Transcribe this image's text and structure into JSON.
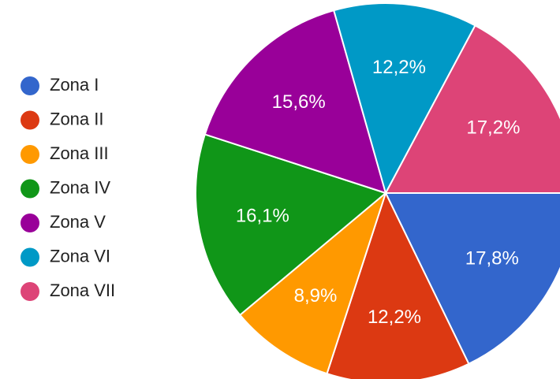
{
  "chart_data": {
    "type": "pie",
    "categories": [
      "Zona I",
      "Zona II",
      "Zona III",
      "Zona IV",
      "Zona V",
      "Zona VI",
      "Zona VII"
    ],
    "values": [
      17.8,
      12.2,
      8.9,
      16.1,
      15.6,
      12.2,
      17.2
    ],
    "value_labels": [
      "17,8%",
      "12,2%",
      "8,9%",
      "16,1%",
      "15,6%",
      "12,2%",
      "17,2%"
    ],
    "colors": [
      "#3366cc",
      "#dc3912",
      "#ff9900",
      "#109618",
      "#990099",
      "#0099c6",
      "#dd4477"
    ],
    "legend": "left"
  }
}
